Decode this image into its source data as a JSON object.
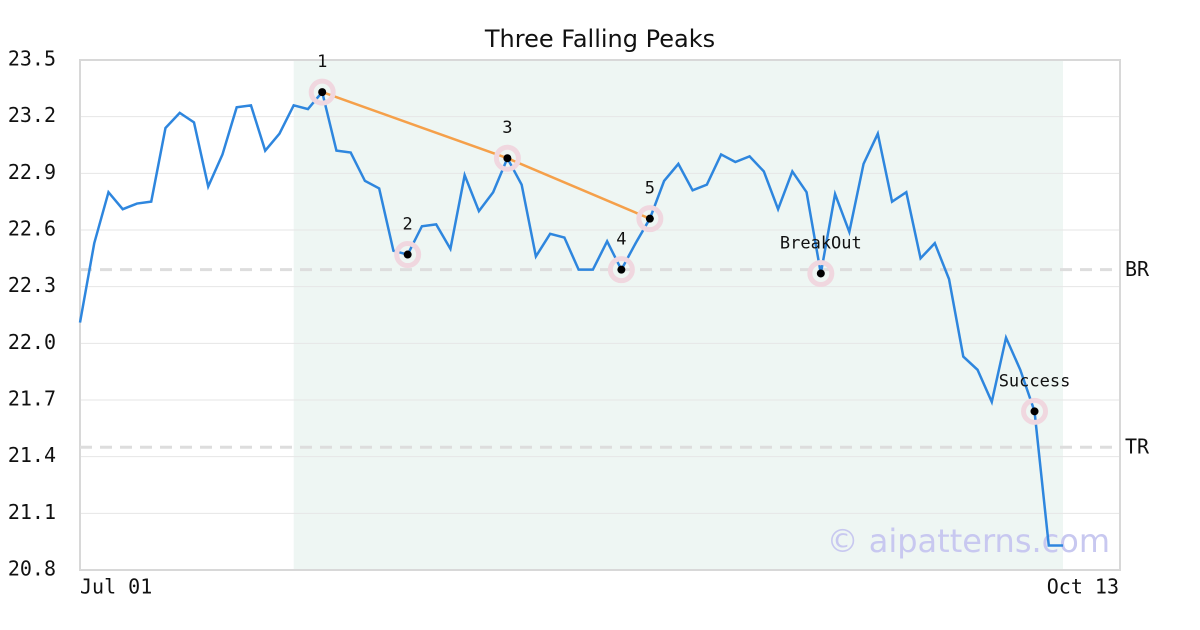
{
  "chart_data": {
    "type": "line",
    "title": "Three Falling Peaks",
    "watermark": "© aipatterns.com",
    "color": "#2e86de",
    "categories": [
      "Jul 01",
      null,
      null,
      null,
      null,
      null,
      null,
      null,
      null,
      null,
      null,
      null,
      null,
      null,
      null,
      null,
      null,
      null,
      null,
      null,
      null,
      null,
      null,
      null,
      null,
      null,
      null,
      null,
      null,
      null,
      null,
      null,
      null,
      null,
      null,
      null,
      null,
      null,
      null,
      null,
      null,
      null,
      null,
      null,
      null,
      null,
      null,
      null,
      null,
      null,
      null,
      null,
      null,
      null,
      null,
      null,
      null,
      null,
      null,
      null,
      null,
      null,
      null,
      null,
      null,
      null,
      null,
      null,
      null,
      null,
      null,
      null,
      null,
      "Oct 13"
    ],
    "values": [
      22.11,
      22.53,
      22.8,
      22.71,
      22.74,
      22.75,
      23.14,
      23.22,
      23.17,
      22.83,
      23.0,
      23.25,
      23.26,
      23.02,
      23.11,
      23.26,
      23.24,
      23.33,
      23.02,
      23.01,
      22.86,
      22.82,
      22.49,
      22.47,
      22.62,
      22.63,
      22.5,
      22.89,
      22.7,
      22.8,
      22.98,
      22.84,
      22.46,
      22.58,
      22.56,
      22.39,
      22.39,
      22.54,
      22.39,
      22.53,
      22.66,
      22.86,
      22.95,
      22.81,
      22.84,
      23.0,
      22.96,
      22.99,
      22.91,
      22.71,
      22.91,
      22.8,
      22.37,
      22.79,
      22.59,
      22.95,
      23.11,
      22.75,
      22.8,
      22.45,
      22.53,
      22.34,
      21.93,
      21.86,
      21.69,
      22.03,
      21.86,
      21.64,
      20.93,
      20.93,
      null,
      null,
      null,
      null
    ],
    "pattern_labels": [
      null,
      null,
      null,
      null,
      null,
      null,
      null,
      null,
      null,
      null,
      null,
      null,
      null,
      null,
      null,
      null,
      null,
      "1",
      null,
      null,
      null,
      null,
      null,
      "2",
      null,
      null,
      null,
      null,
      null,
      null,
      "3",
      null,
      null,
      null,
      null,
      null,
      null,
      null,
      "4",
      null,
      "5",
      null,
      null,
      null,
      null,
      null,
      null,
      null,
      null,
      null,
      null,
      null,
      "BreakOut",
      null,
      null,
      null,
      null,
      null,
      null,
      null,
      null,
      null,
      null,
      null,
      null,
      null,
      null,
      "Success",
      null,
      null,
      null,
      null,
      null,
      null
    ],
    "peaks_line": {
      "color": "#f5a04a",
      "values": [
        null,
        null,
        null,
        null,
        null,
        null,
        null,
        null,
        null,
        null,
        null,
        null,
        null,
        null,
        null,
        null,
        null,
        23.33,
        null,
        null,
        null,
        null,
        null,
        null,
        null,
        null,
        null,
        null,
        null,
        null,
        22.98,
        null,
        null,
        null,
        null,
        null,
        null,
        null,
        null,
        null,
        22.66,
        null,
        null,
        null,
        null,
        null,
        null,
        null,
        null,
        null,
        null,
        null,
        null,
        null,
        null,
        null,
        null,
        null,
        null,
        null,
        null,
        null,
        null,
        null,
        null,
        null,
        null,
        null,
        null,
        null,
        null,
        null,
        null,
        null
      ]
    },
    "levels": [
      {
        "label": "BR",
        "value": 22.39
      },
      {
        "label": "TR",
        "value": 21.45
      }
    ],
    "ylim": [
      20.8,
      23.5
    ],
    "yticks": [
      20.8,
      21.1,
      21.4,
      21.7,
      {
        "value": 22.0,
        "label": "22.0"
      },
      22.3,
      22.6,
      22.9,
      23.2,
      23.5
    ],
    "grid": true
  }
}
